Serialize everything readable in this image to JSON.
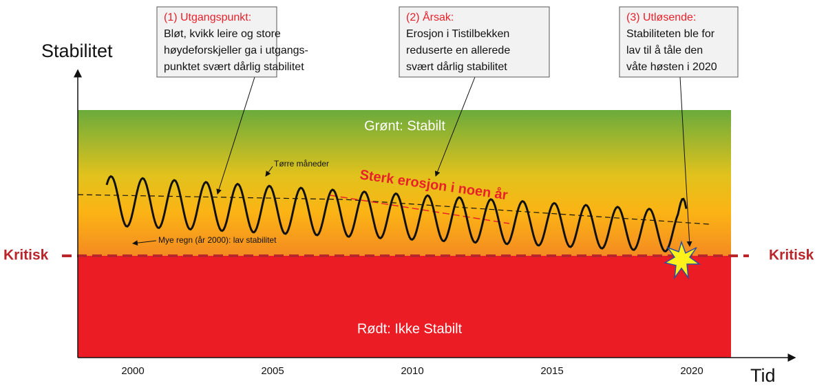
{
  "y_axis_label": "Stabilitet",
  "x_axis_label": "Tid",
  "x_ticks": [
    "2000",
    "2005",
    "2010",
    "2015",
    "2020"
  ],
  "zones": {
    "green": "Grønt: Stabilt",
    "red": "Rødt: Ikke Stabilt"
  },
  "critical_label_left": "Kritisk",
  "critical_label_right": "Kritisk",
  "callouts": [
    {
      "title": "(1) Utgangspunkt:",
      "lines": [
        "Bløt, kvikk leire  og store",
        "høydeforskjeller ga i utgangs-",
        "punktet svært dårlig stabilitet"
      ]
    },
    {
      "title": "(2) Årsak:",
      "lines": [
        "Erosjon i Tistilbekken",
        "reduserte en allerede",
        "svært dårlig stabilitet"
      ]
    },
    {
      "title": "(3) Utløsende:",
      "lines": [
        "Stabiliteten ble for",
        "lav til å tåle den",
        "våte høsten i 2020"
      ]
    }
  ],
  "annotations": {
    "dry": "Tørre måneder",
    "rain": "Mye regn (år 2000): lav stabilitet",
    "erosion": "Sterk erosjon i noen år"
  }
}
